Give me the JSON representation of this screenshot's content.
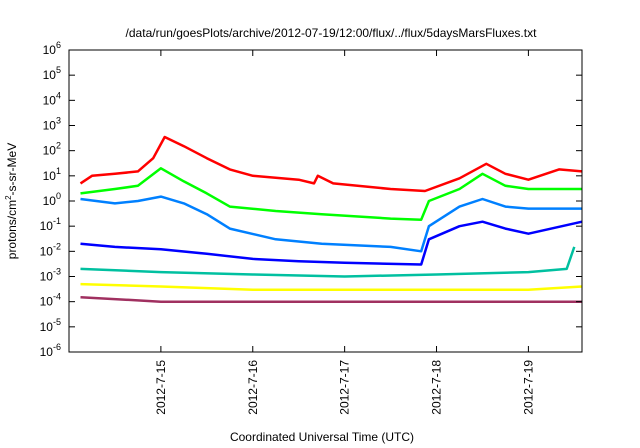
{
  "chart_data": {
    "type": "line",
    "title": "/data/run/goesPlots/archive/2012-07-19/12:00/flux/../flux/5daysMarsFluxes.txt",
    "xlabel": "Coordinated Universal Time (UTC)",
    "ylabel": {
      "prefix": "protons/cm",
      "superscript": "2",
      "suffix": "-s-sr-MeV"
    },
    "yscale": "log",
    "ylim": [
      1e-06,
      1000000.0
    ],
    "ytick_exponents": [
      -6,
      -5,
      -4,
      -3,
      -2,
      -1,
      0,
      1,
      2,
      3,
      4,
      5,
      6
    ],
    "ytick_base": "10",
    "xlim": [
      "2012-07-14 00:00",
      "2012-07-19 14:00"
    ],
    "xticks": [
      {
        "date": "2012-07-15 00:00",
        "label": "2012-7-15"
      },
      {
        "date": "2012-07-16 00:00",
        "label": "2012-7-16"
      },
      {
        "date": "2012-07-17 00:00",
        "label": "2012-7-17"
      },
      {
        "date": "2012-07-18 00:00",
        "label": "2012-7-18"
      },
      {
        "date": "2012-07-19 00:00",
        "label": "2012-7-19"
      }
    ],
    "grid": false,
    "legend": "none",
    "series": [
      {
        "color": "#ff0000",
        "points": [
          [
            "2012-07-14 03:00",
            5
          ],
          [
            "2012-07-14 06:00",
            10
          ],
          [
            "2012-07-14 12:00",
            12
          ],
          [
            "2012-07-14 18:00",
            15
          ],
          [
            "2012-07-14 22:00",
            50
          ],
          [
            "2012-07-15 01:00",
            350
          ],
          [
            "2012-07-15 06:00",
            150
          ],
          [
            "2012-07-15 12:00",
            50
          ],
          [
            "2012-07-15 18:00",
            18
          ],
          [
            "2012-07-16 00:00",
            10
          ],
          [
            "2012-07-16 12:00",
            7
          ],
          [
            "2012-07-16 16:00",
            5
          ],
          [
            "2012-07-16 17:00",
            10
          ],
          [
            "2012-07-16 21:00",
            5
          ],
          [
            "2012-07-17 12:00",
            3
          ],
          [
            "2012-07-17 21:00",
            2.5
          ],
          [
            "2012-07-18 06:00",
            8
          ],
          [
            "2012-07-18 13:00",
            30
          ],
          [
            "2012-07-18 18:00",
            12
          ],
          [
            "2012-07-19 00:00",
            7
          ],
          [
            "2012-07-19 08:00",
            18
          ],
          [
            "2012-07-19 14:00",
            15
          ]
        ]
      },
      {
        "color": "#00ff00",
        "points": [
          [
            "2012-07-14 03:00",
            2
          ],
          [
            "2012-07-14 12:00",
            3
          ],
          [
            "2012-07-14 18:00",
            4
          ],
          [
            "2012-07-15 00:00",
            20
          ],
          [
            "2012-07-15 06:00",
            6
          ],
          [
            "2012-07-15 12:00",
            2
          ],
          [
            "2012-07-15 18:00",
            0.6
          ],
          [
            "2012-07-16 06:00",
            0.4
          ],
          [
            "2012-07-16 18:00",
            0.3
          ],
          [
            "2012-07-17 12:00",
            0.2
          ],
          [
            "2012-07-17 20:00",
            0.18
          ],
          [
            "2012-07-17 22:00",
            1
          ],
          [
            "2012-07-18 06:00",
            3
          ],
          [
            "2012-07-18 12:00",
            12
          ],
          [
            "2012-07-18 18:00",
            4
          ],
          [
            "2012-07-19 00:00",
            3
          ],
          [
            "2012-07-19 14:00",
            3
          ]
        ]
      },
      {
        "color": "#0080ff",
        "points": [
          [
            "2012-07-14 03:00",
            1.2
          ],
          [
            "2012-07-14 12:00",
            0.8
          ],
          [
            "2012-07-14 18:00",
            1
          ],
          [
            "2012-07-15 00:00",
            1.5
          ],
          [
            "2012-07-15 06:00",
            0.8
          ],
          [
            "2012-07-15 12:00",
            0.3
          ],
          [
            "2012-07-15 18:00",
            0.08
          ],
          [
            "2012-07-16 06:00",
            0.03
          ],
          [
            "2012-07-16 18:00",
            0.02
          ],
          [
            "2012-07-17 12:00",
            0.015
          ],
          [
            "2012-07-17 20:00",
            0.01
          ],
          [
            "2012-07-17 22:00",
            0.1
          ],
          [
            "2012-07-18 06:00",
            0.6
          ],
          [
            "2012-07-18 12:00",
            1.2
          ],
          [
            "2012-07-18 18:00",
            0.6
          ],
          [
            "2012-07-19 00:00",
            0.5
          ],
          [
            "2012-07-19 14:00",
            0.5
          ]
        ]
      },
      {
        "color": "#0000ff",
        "points": [
          [
            "2012-07-14 03:00",
            0.02
          ],
          [
            "2012-07-14 12:00",
            0.015
          ],
          [
            "2012-07-15 00:00",
            0.012
          ],
          [
            "2012-07-15 12:00",
            0.008
          ],
          [
            "2012-07-16 00:00",
            0.005
          ],
          [
            "2012-07-16 12:00",
            0.004
          ],
          [
            "2012-07-17 00:00",
            0.0035
          ],
          [
            "2012-07-17 20:00",
            0.003
          ],
          [
            "2012-07-17 22:00",
            0.03
          ],
          [
            "2012-07-18 06:00",
            0.1
          ],
          [
            "2012-07-18 12:00",
            0.15
          ],
          [
            "2012-07-18 18:00",
            0.08
          ],
          [
            "2012-07-19 00:00",
            0.05
          ],
          [
            "2012-07-19 14:00",
            0.15
          ]
        ]
      },
      {
        "color": "#00c0a0",
        "points": [
          [
            "2012-07-14 03:00",
            0.002
          ],
          [
            "2012-07-15 00:00",
            0.0015
          ],
          [
            "2012-07-16 00:00",
            0.0012
          ],
          [
            "2012-07-17 00:00",
            0.001
          ],
          [
            "2012-07-18 00:00",
            0.0012
          ],
          [
            "2012-07-19 00:00",
            0.0015
          ],
          [
            "2012-07-19 10:00",
            0.002
          ],
          [
            "2012-07-19 12:00",
            0.015
          ]
        ]
      },
      {
        "color": "#ffff00",
        "points": [
          [
            "2012-07-14 03:00",
            0.0005
          ],
          [
            "2012-07-15 00:00",
            0.0004
          ],
          [
            "2012-07-16 00:00",
            0.0003
          ],
          [
            "2012-07-17 00:00",
            0.0003
          ],
          [
            "2012-07-18 00:00",
            0.0003
          ],
          [
            "2012-07-19 00:00",
            0.0003
          ],
          [
            "2012-07-19 14:00",
            0.0004
          ]
        ]
      },
      {
        "color": "#a03060",
        "points": [
          [
            "2012-07-14 03:00",
            0.00015
          ],
          [
            "2012-07-15 00:00",
            0.0001
          ],
          [
            "2012-07-16 00:00",
            0.0001
          ],
          [
            "2012-07-17 00:00",
            0.0001
          ],
          [
            "2012-07-18 00:00",
            0.0001
          ],
          [
            "2012-07-19 00:00",
            0.0001
          ],
          [
            "2012-07-19 14:00",
            0.0001
          ]
        ]
      }
    ]
  }
}
